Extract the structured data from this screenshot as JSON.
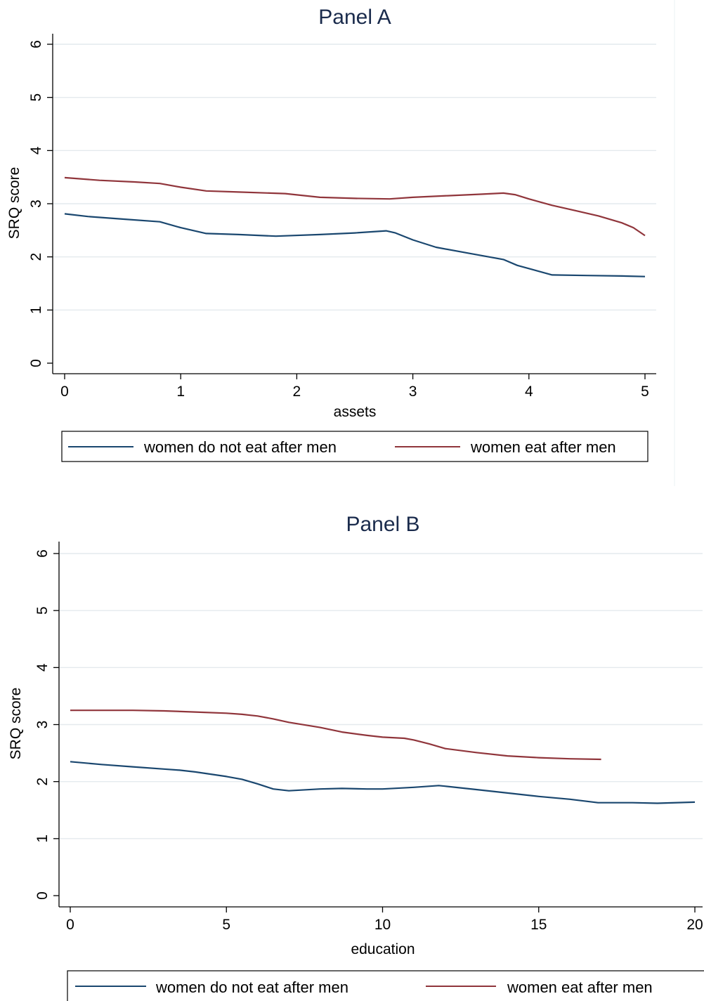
{
  "colors": {
    "series_a": "#1a476f",
    "series_b": "#90353b",
    "title": "#1a2b4c",
    "grid": "#e4eaee"
  },
  "chart_data": [
    {
      "type": "line",
      "title": "Panel A",
      "xlabel": "assets",
      "ylabel": "SRQ score",
      "xlim": [
        0,
        5
      ],
      "ylim": [
        0,
        6
      ],
      "xticks": [
        "0",
        "1",
        "2",
        "3",
        "4",
        "5"
      ],
      "yticks": [
        "0",
        "1",
        "2",
        "3",
        "4",
        "5",
        "6"
      ],
      "grid": true,
      "legend": "bottom",
      "series": [
        {
          "name": "women do not eat after men",
          "x": [
            0,
            0.2,
            0.5,
            0.82,
            1.0,
            1.22,
            1.5,
            1.82,
            2.2,
            2.5,
            2.77,
            2.85,
            3.0,
            3.2,
            3.5,
            3.78,
            3.9,
            4.2,
            4.5,
            4.8,
            5.0
          ],
          "y": [
            2.81,
            2.76,
            2.71,
            2.66,
            2.55,
            2.44,
            2.42,
            2.39,
            2.42,
            2.45,
            2.49,
            2.45,
            2.32,
            2.18,
            2.06,
            1.95,
            1.84,
            1.66,
            1.65,
            1.64,
            1.63
          ]
        },
        {
          "name": "women eat after men",
          "x": [
            0,
            0.3,
            0.6,
            0.82,
            1.0,
            1.22,
            1.5,
            1.9,
            2.2,
            2.5,
            2.8,
            3.0,
            3.3,
            3.6,
            3.78,
            3.88,
            4.0,
            4.2,
            4.4,
            4.6,
            4.8,
            4.9,
            5.0
          ],
          "y": [
            3.49,
            3.44,
            3.41,
            3.38,
            3.31,
            3.24,
            3.22,
            3.19,
            3.12,
            3.1,
            3.09,
            3.12,
            3.15,
            3.18,
            3.2,
            3.17,
            3.09,
            2.97,
            2.87,
            2.77,
            2.64,
            2.55,
            2.4
          ]
        }
      ]
    },
    {
      "type": "line",
      "title": "Panel B",
      "xlabel": "education",
      "ylabel": "SRQ score",
      "xlim": [
        0,
        20
      ],
      "ylim": [
        0,
        6
      ],
      "xticks": [
        "0",
        "5",
        "10",
        "15",
        "20"
      ],
      "yticks": [
        "0",
        "1",
        "2",
        "3",
        "4",
        "5",
        "6"
      ],
      "grid": true,
      "legend": "bottom",
      "series": [
        {
          "name": "women do not eat after men",
          "x": [
            0,
            1,
            2,
            3,
            3.5,
            4,
            4.5,
            5,
            5.5,
            6,
            6.5,
            7,
            8,
            8.7,
            9.5,
            10,
            11,
            11.8,
            12,
            13,
            14,
            15,
            16,
            16.9,
            18,
            18.8,
            20
          ],
          "y": [
            2.35,
            2.3,
            2.26,
            2.22,
            2.2,
            2.17,
            2.13,
            2.09,
            2.04,
            1.96,
            1.87,
            1.84,
            1.87,
            1.88,
            1.87,
            1.87,
            1.9,
            1.93,
            1.92,
            1.86,
            1.8,
            1.74,
            1.69,
            1.63,
            1.63,
            1.62,
            1.64
          ]
        },
        {
          "name": "women eat after men",
          "x": [
            0,
            1,
            2,
            3,
            4,
            5,
            5.5,
            6,
            6.5,
            7,
            8,
            8.7,
            9.5,
            10,
            10.7,
            11,
            11.5,
            12,
            13,
            14,
            15,
            16,
            17
          ],
          "y": [
            3.25,
            3.25,
            3.25,
            3.24,
            3.22,
            3.2,
            3.18,
            3.15,
            3.1,
            3.04,
            2.95,
            2.87,
            2.81,
            2.78,
            2.76,
            2.73,
            2.66,
            2.58,
            2.51,
            2.45,
            2.42,
            2.4,
            2.39
          ]
        }
      ]
    }
  ]
}
